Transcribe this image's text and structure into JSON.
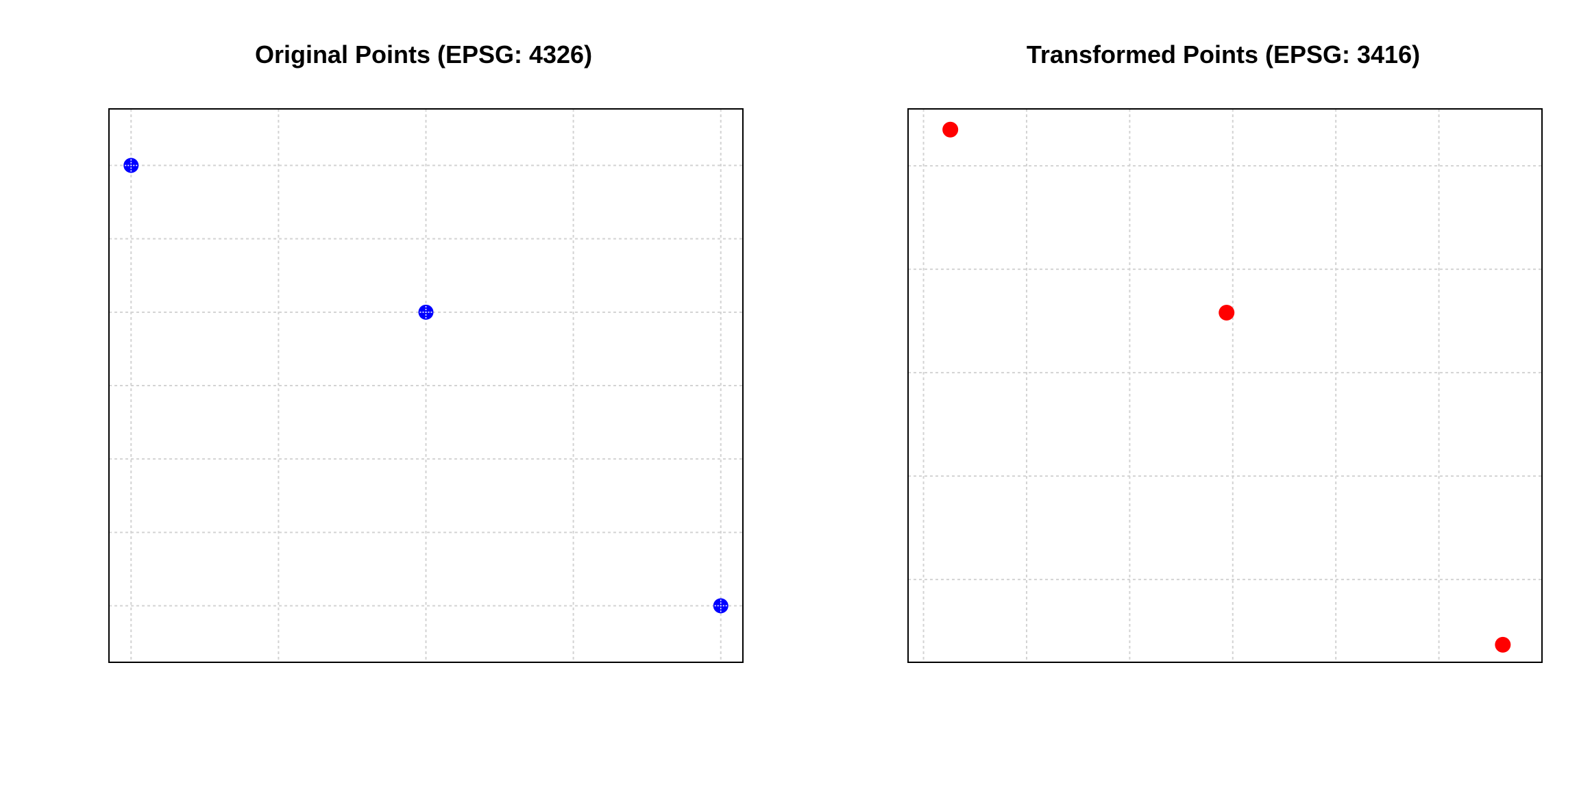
{
  "chart_data": [
    {
      "type": "scatter",
      "title": "Original Points (EPSG: 4326)",
      "xlabel": "",
      "ylabel": "",
      "xlim": [
        -0.15,
        4.15
      ],
      "ylim": [
        -0.77,
        6.77
      ],
      "x_grid": [
        0,
        1,
        2,
        3,
        4
      ],
      "y_grid": [
        0,
        1,
        2,
        3,
        4,
        5,
        6
      ],
      "grid": true,
      "marker": "circle-plus",
      "series": [
        {
          "color": "#0000ff",
          "x": [
            0,
            2,
            4
          ],
          "y": [
            6,
            4,
            0
          ]
        }
      ]
    },
    {
      "type": "scatter",
      "title": "Transformed Points (EPSG: 3416)",
      "xlabel": "",
      "ylabel": "",
      "xlim": [
        -0.15,
        6.0
      ],
      "ylim": [
        -0.8,
        4.55
      ],
      "x_grid": [
        0,
        1,
        2,
        3,
        4,
        5
      ],
      "y_grid": [
        0,
        1,
        2,
        3,
        4
      ],
      "grid": true,
      "marker": "circle",
      "series": [
        {
          "color": "#ff0000",
          "x": [
            0.26,
            2.94,
            5.62
          ],
          "y": [
            4.35,
            2.58,
            -0.63
          ]
        }
      ]
    }
  ]
}
